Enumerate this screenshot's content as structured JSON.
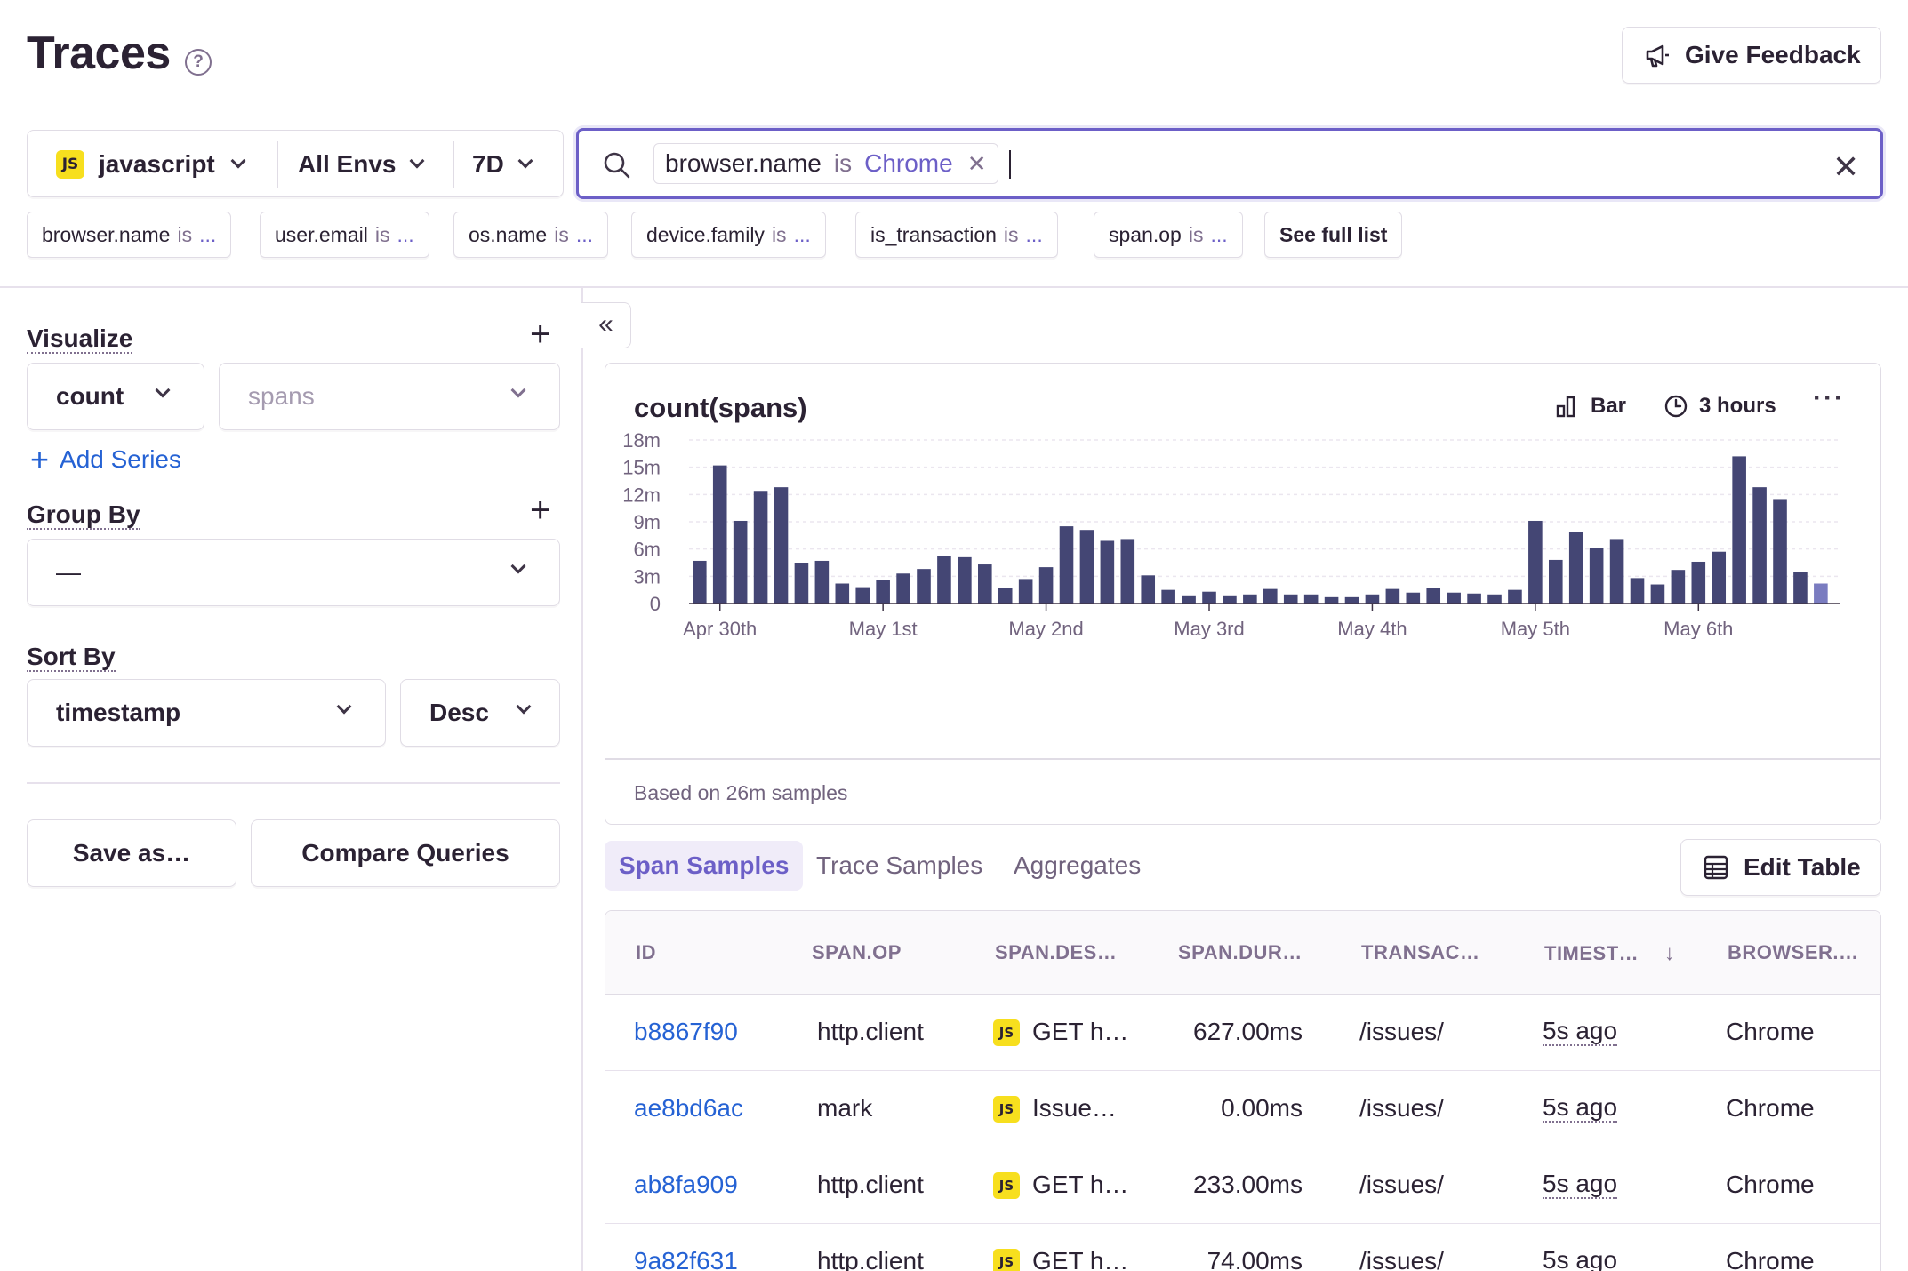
{
  "header": {
    "title": "Traces",
    "help_icon": "?",
    "feedback_label": "Give Feedback"
  },
  "selectors": {
    "project_badge": "JS",
    "project": "javascript",
    "environment": "All Envs",
    "period": "7D"
  },
  "search": {
    "token_key": "browser.name",
    "token_op": "is",
    "token_value": "Chrome"
  },
  "suggestions": [
    {
      "key": "browser.name",
      "op": "is",
      "ellipsis": "..."
    },
    {
      "key": "user.email",
      "op": "is",
      "ellipsis": "..."
    },
    {
      "key": "os.name",
      "op": "is",
      "ellipsis": "..."
    },
    {
      "key": "device.family",
      "op": "is",
      "ellipsis": "..."
    },
    {
      "key": "is_transaction",
      "op": "is",
      "ellipsis": "..."
    },
    {
      "key": "span.op",
      "op": "is",
      "ellipsis": "..."
    }
  ],
  "suggestions_full_list": "See full list",
  "sidebar": {
    "visualize_label": "Visualize",
    "aggregate": "count",
    "field": "spans",
    "add_series": "Add Series",
    "group_by_label": "Group By",
    "group_by_value": "—",
    "sort_by_label": "Sort By",
    "sort_field": "timestamp",
    "sort_order": "Desc",
    "save_as": "Save as…",
    "compare": "Compare Queries"
  },
  "chart": {
    "title": "count(spans)",
    "type_label": "Bar",
    "interval_label": "3 hours",
    "footer": "Based on 26m samples"
  },
  "chart_data": {
    "type": "bar",
    "title": "count(spans)",
    "xlabel": "",
    "ylabel": "",
    "ylim": [
      0,
      18
    ],
    "y_unit": "m",
    "y_ticks": [
      "0",
      "3m",
      "6m",
      "9m",
      "12m",
      "15m",
      "18m"
    ],
    "x_tick_labels": [
      "Apr 30th",
      "May 1st",
      "May 2nd",
      "May 3rd",
      "May 4th",
      "May 5th",
      "May 6th"
    ],
    "grid": true,
    "colors": {
      "bar": "#444674",
      "last_bar": "#7a7cc0"
    },
    "values": [
      4.7,
      15.2,
      9.1,
      12.4,
      12.8,
      4.5,
      4.7,
      2.2,
      1.8,
      2.6,
      3.3,
      3.8,
      5.2,
      5.1,
      4.3,
      1.7,
      2.7,
      4.0,
      8.5,
      8.1,
      6.9,
      7.1,
      3.1,
      1.5,
      0.9,
      1.3,
      0.9,
      1.0,
      1.6,
      1.0,
      1.0,
      0.7,
      0.7,
      1.0,
      1.6,
      1.2,
      1.7,
      1.2,
      1.1,
      1.0,
      1.5,
      9.1,
      4.8,
      7.9,
      6.1,
      7.1,
      2.8,
      2.1,
      3.7,
      4.6,
      5.7,
      16.2,
      12.8,
      11.5,
      3.5,
      2.2
    ]
  },
  "tabs": [
    "Span Samples",
    "Trace Samples",
    "Aggregates"
  ],
  "edit_table_label": "Edit Table",
  "table": {
    "columns": [
      "ID",
      "SPAN.OP",
      "SPAN.DES…",
      "SPAN.DUR…",
      "TRANSAC…",
      "TIMEST…",
      "BROWSER.…"
    ],
    "sort_arrow": "↓",
    "rows": [
      {
        "id": "b8867f90",
        "op": "http.client",
        "badge": "JS",
        "desc": "GET h…",
        "dur": "627.00ms",
        "txn": "/issues/",
        "ts": "5s ago",
        "browser": "Chrome"
      },
      {
        "id": "ae8bd6ac",
        "op": "mark",
        "badge": "JS",
        "desc": "Issue…",
        "dur": "0.00ms",
        "txn": "/issues/",
        "ts": "5s ago",
        "browser": "Chrome"
      },
      {
        "id": "ab8fa909",
        "op": "http.client",
        "badge": "JS",
        "desc": "GET h…",
        "dur": "233.00ms",
        "txn": "/issues/",
        "ts": "5s ago",
        "browser": "Chrome"
      },
      {
        "id": "9a82f631",
        "op": "http.client",
        "badge": "JS",
        "desc": "GET h…",
        "dur": "74.00ms",
        "txn": "/issues/",
        "ts": "5s ago",
        "browser": "Chrome"
      }
    ]
  }
}
